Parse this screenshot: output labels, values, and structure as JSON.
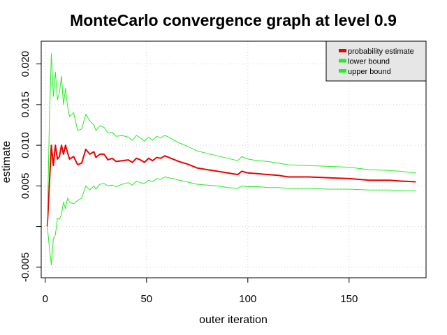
{
  "chart_data": {
    "type": "line",
    "title": "MonteCarlo convergence graph at level 0.9",
    "xlabel": "outer iteration",
    "ylabel": "estimate",
    "xlim": [
      -2,
      188
    ],
    "ylim": [
      -0.0063,
      0.0228
    ],
    "x_ticks": [
      0,
      50,
      100,
      150
    ],
    "x_tick_labels": [
      "0",
      "50",
      "100",
      "150"
    ],
    "y_ticks": [
      -0.005,
      0,
      0.005,
      0.01,
      0.015,
      0.02
    ],
    "y_tick_labels": [
      "-0.005",
      "",
      "0.005",
      "0.010",
      "0.015",
      "0.020"
    ],
    "grid": true,
    "legend_position": "top-right",
    "series": [
      {
        "name": "probability estimate",
        "color": "#ee0000",
        "points": [
          [
            1,
            0.0
          ],
          [
            2,
            0.005
          ],
          [
            3,
            0.01
          ],
          [
            4,
            0.0075
          ],
          [
            5,
            0.01
          ],
          [
            6,
            0.0083
          ],
          [
            7,
            0.0086
          ],
          [
            8,
            0.01
          ],
          [
            9,
            0.0089
          ],
          [
            10,
            0.01
          ],
          [
            11,
            0.0091
          ],
          [
            12,
            0.0083
          ],
          [
            14,
            0.0086
          ],
          [
            16,
            0.0076
          ],
          [
            18,
            0.0078
          ],
          [
            20,
            0.0095
          ],
          [
            22,
            0.0089
          ],
          [
            24,
            0.0092
          ],
          [
            25,
            0.0085
          ],
          [
            27,
            0.0089
          ],
          [
            29,
            0.0089
          ],
          [
            31,
            0.0082
          ],
          [
            33,
            0.0084
          ],
          [
            35,
            0.008
          ],
          [
            38,
            0.0081
          ],
          [
            41,
            0.0082
          ],
          [
            43,
            0.0079
          ],
          [
            45,
            0.0084
          ],
          [
            47,
            0.0082
          ],
          [
            49,
            0.0079
          ],
          [
            51,
            0.0084
          ],
          [
            53,
            0.0081
          ],
          [
            55,
            0.0085
          ],
          [
            57,
            0.0084
          ],
          [
            59,
            0.0087
          ],
          [
            61,
            0.0085
          ],
          [
            63,
            0.0083
          ],
          [
            66,
            0.008
          ],
          [
            70,
            0.0077
          ],
          [
            75,
            0.0072
          ],
          [
            80,
            0.007
          ],
          [
            85,
            0.0068
          ],
          [
            90,
            0.0066
          ],
          [
            95,
            0.0064
          ],
          [
            97,
            0.0068
          ],
          [
            100,
            0.0066
          ],
          [
            105,
            0.0065
          ],
          [
            110,
            0.0064
          ],
          [
            115,
            0.0063
          ],
          [
            120,
            0.0061
          ],
          [
            130,
            0.0061
          ],
          [
            140,
            0.006
          ],
          [
            150,
            0.0059
          ],
          [
            160,
            0.0057
          ],
          [
            170,
            0.0057
          ],
          [
            175,
            0.0056
          ],
          [
            183,
            0.0055
          ]
        ]
      },
      {
        "name": "lower bound",
        "color": "#22ee22",
        "points": [
          [
            1,
            0.0
          ],
          [
            2,
            -0.0025
          ],
          [
            3,
            -0.0047
          ],
          [
            4,
            -0.0015
          ],
          [
            5,
            -0.001
          ],
          [
            6,
            0.001
          ],
          [
            7,
            0.0009
          ],
          [
            8,
            0.0015
          ],
          [
            9,
            0.003
          ],
          [
            10,
            0.0022
          ],
          [
            11,
            0.0035
          ],
          [
            12,
            0.003
          ],
          [
            14,
            0.0028
          ],
          [
            16,
            0.0032
          ],
          [
            18,
            0.0035
          ],
          [
            20,
            0.005
          ],
          [
            22,
            0.0045
          ],
          [
            24,
            0.005
          ],
          [
            25,
            0.0046
          ],
          [
            27,
            0.0052
          ],
          [
            29,
            0.0053
          ],
          [
            31,
            0.005
          ],
          [
            33,
            0.0051
          ],
          [
            35,
            0.0049
          ],
          [
            38,
            0.0052
          ],
          [
            41,
            0.0054
          ],
          [
            43,
            0.0051
          ],
          [
            45,
            0.0056
          ],
          [
            47,
            0.0054
          ],
          [
            49,
            0.0053
          ],
          [
            51,
            0.0057
          ],
          [
            53,
            0.0055
          ],
          [
            55,
            0.0059
          ],
          [
            57,
            0.0058
          ],
          [
            59,
            0.0061
          ],
          [
            61,
            0.006
          ],
          [
            63,
            0.0059
          ],
          [
            66,
            0.0057
          ],
          [
            70,
            0.0055
          ],
          [
            75,
            0.0052
          ],
          [
            80,
            0.0051
          ],
          [
            85,
            0.005
          ],
          [
            90,
            0.0048
          ],
          [
            95,
            0.0047
          ],
          [
            97,
            0.005
          ],
          [
            100,
            0.0049
          ],
          [
            105,
            0.0049
          ],
          [
            110,
            0.0048
          ],
          [
            115,
            0.0048
          ],
          [
            120,
            0.0047
          ],
          [
            130,
            0.0047
          ],
          [
            140,
            0.0046
          ],
          [
            150,
            0.0046
          ],
          [
            160,
            0.0045
          ],
          [
            170,
            0.0045
          ],
          [
            175,
            0.0044
          ],
          [
            183,
            0.0044
          ]
        ]
      },
      {
        "name": "upper bound",
        "color": "#22ee22",
        "points": [
          [
            1,
            0.0
          ],
          [
            2,
            0.0125
          ],
          [
            3,
            0.0213
          ],
          [
            4,
            0.016
          ],
          [
            5,
            0.019
          ],
          [
            6,
            0.0156
          ],
          [
            7,
            0.0165
          ],
          [
            8,
            0.0185
          ],
          [
            9,
            0.015
          ],
          [
            10,
            0.017
          ],
          [
            11,
            0.0148
          ],
          [
            12,
            0.0135
          ],
          [
            14,
            0.014
          ],
          [
            16,
            0.0118
          ],
          [
            18,
            0.012
          ],
          [
            20,
            0.0138
          ],
          [
            22,
            0.013
          ],
          [
            24,
            0.0125
          ],
          [
            25,
            0.0118
          ],
          [
            27,
            0.0124
          ],
          [
            29,
            0.0122
          ],
          [
            31,
            0.0115
          ],
          [
            33,
            0.0116
          ],
          [
            35,
            0.0111
          ],
          [
            38,
            0.0112
          ],
          [
            41,
            0.011
          ],
          [
            43,
            0.0106
          ],
          [
            45,
            0.0112
          ],
          [
            47,
            0.0109
          ],
          [
            49,
            0.0105
          ],
          [
            51,
            0.011
          ],
          [
            53,
            0.0106
          ],
          [
            55,
            0.0111
          ],
          [
            57,
            0.0109
          ],
          [
            59,
            0.0112
          ],
          [
            61,
            0.011
          ],
          [
            63,
            0.0107
          ],
          [
            66,
            0.0103
          ],
          [
            70,
            0.0099
          ],
          [
            75,
            0.0093
          ],
          [
            80,
            0.009
          ],
          [
            85,
            0.0087
          ],
          [
            90,
            0.0084
          ],
          [
            95,
            0.0081
          ],
          [
            97,
            0.0086
          ],
          [
            100,
            0.0083
          ],
          [
            105,
            0.0081
          ],
          [
            110,
            0.008
          ],
          [
            115,
            0.0078
          ],
          [
            120,
            0.0076
          ],
          [
            130,
            0.0075
          ],
          [
            140,
            0.0074
          ],
          [
            150,
            0.0073
          ],
          [
            160,
            0.007
          ],
          [
            170,
            0.0069
          ],
          [
            175,
            0.0068
          ],
          [
            183,
            0.0066
          ]
        ]
      }
    ]
  }
}
